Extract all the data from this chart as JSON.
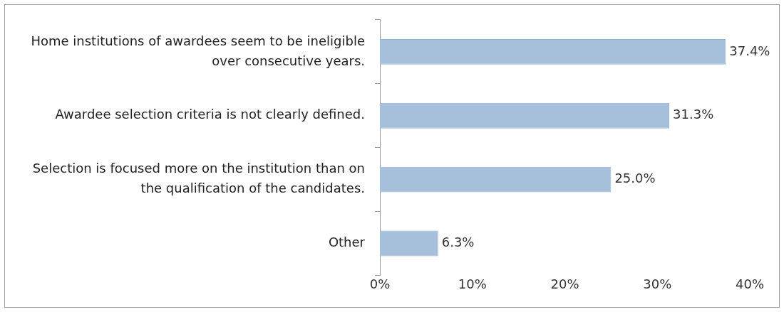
{
  "chart_data": {
    "type": "bar",
    "orientation": "horizontal",
    "categories": [
      "Home institutions of awardees seem to be ineligible over consecutive years.",
      "Awardee selection criteria is not clearly defined.",
      "Selection is focused more on the institution than on the qualification of the candidates.",
      "Other"
    ],
    "values": [
      37.4,
      31.3,
      25.0,
      6.3
    ],
    "value_labels": [
      "37.4%",
      "31.3%",
      "25.0%",
      "6.3%"
    ],
    "color": "#a6bfdb",
    "xlim": [
      0,
      40
    ],
    "xticks": [
      {
        "value": 0,
        "label": "0%"
      },
      {
        "value": 10,
        "label": "10%"
      },
      {
        "value": 20,
        "label": "20%"
      },
      {
        "value": 30,
        "label": "30%"
      },
      {
        "value": 40,
        "label": "40%"
      }
    ],
    "grid": false,
    "legend": false
  }
}
